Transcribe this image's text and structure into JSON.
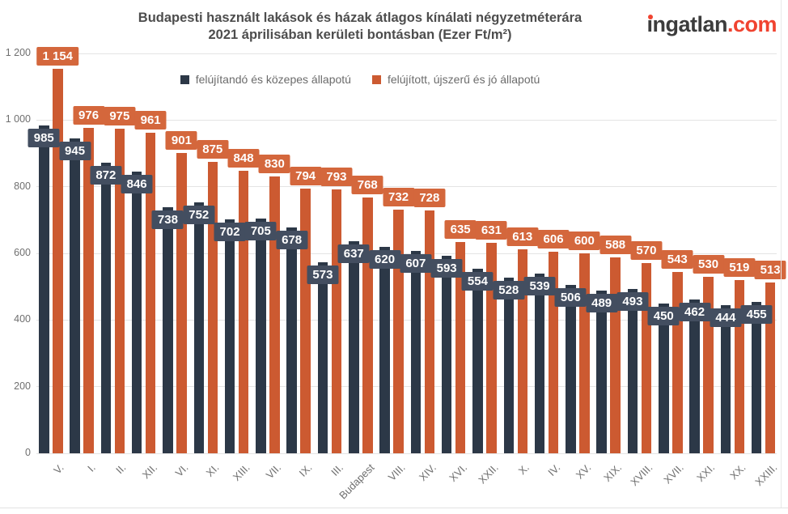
{
  "header": {
    "title_line1": "Budapesti használt lakások és házak átlagos kínálati négyzetméterára",
    "title_line2": "2021 áprilisában kerületi bontásban (Ezer Ft/m²)"
  },
  "logo": {
    "brand_i": "ı",
    "brand_rest": "ngatlan",
    "tld": ".com",
    "brand_color": "#3c3c3c",
    "accent_color": "#f04330"
  },
  "chart_data": {
    "type": "bar",
    "title": "Budapesti használt lakások és házak átlagos kínálati négyzetméterára 2021 áprilisában kerületi bontásban (Ezer Ft/m²)",
    "unit": "Ezer Ft/m²",
    "categories": [
      "V.",
      "I.",
      "II.",
      "XII.",
      "VI.",
      "XI.",
      "XIII.",
      "VII.",
      "IX.",
      "III.",
      "Budapest",
      "VIII.",
      "XIV.",
      "XVI.",
      "XXII.",
      "X.",
      "IV.",
      "XV.",
      "XIX.",
      "XVIII.",
      "XVII.",
      "XXI.",
      "XX.",
      "XXIII."
    ],
    "series": [
      {
        "name": "felújítandó és közepes állapotú",
        "color": "#2c3847",
        "label_bg": "#434e60",
        "values": [
          985,
          945,
          872,
          846,
          738,
          752,
          702,
          705,
          678,
          573,
          637,
          620,
          607,
          593,
          554,
          528,
          539,
          506,
          489,
          493,
          450,
          462,
          444,
          455
        ],
        "labels": [
          "985",
          "945",
          "872",
          "846",
          "738",
          "752",
          "702",
          "705",
          "678",
          "573",
          "637",
          "620",
          "607",
          "593",
          "554",
          "528",
          "539",
          "506",
          "489",
          "493",
          "450",
          "462",
          "444",
          "455"
        ]
      },
      {
        "name": "felújított, újszerű és jó állapotú",
        "color": "#cc5a31",
        "label_bg": "#d4673c",
        "values": [
          1154,
          976,
          975,
          961,
          901,
          875,
          848,
          830,
          794,
          793,
          768,
          732,
          728,
          635,
          631,
          613,
          606,
          600,
          588,
          570,
          543,
          530,
          519,
          513
        ],
        "labels": [
          "1 154",
          "976",
          "975",
          "961",
          "901",
          "875",
          "848",
          "830",
          "794",
          "793",
          "768",
          "732",
          "728",
          "635",
          "631",
          "613",
          "606",
          "600",
          "588",
          "570",
          "543",
          "530",
          "519",
          "513"
        ]
      }
    ],
    "ylim": [
      0,
      1200
    ],
    "yticks": [
      0,
      200,
      400,
      600,
      800,
      1000,
      1200
    ],
    "ytick_labels": [
      "0",
      "200",
      "400",
      "600",
      "800",
      "1 000",
      "1 200"
    ],
    "grid": true,
    "legend_position": "top",
    "grid_color": "#e4e4e4",
    "axis_text_color": "#6f6f6f"
  }
}
